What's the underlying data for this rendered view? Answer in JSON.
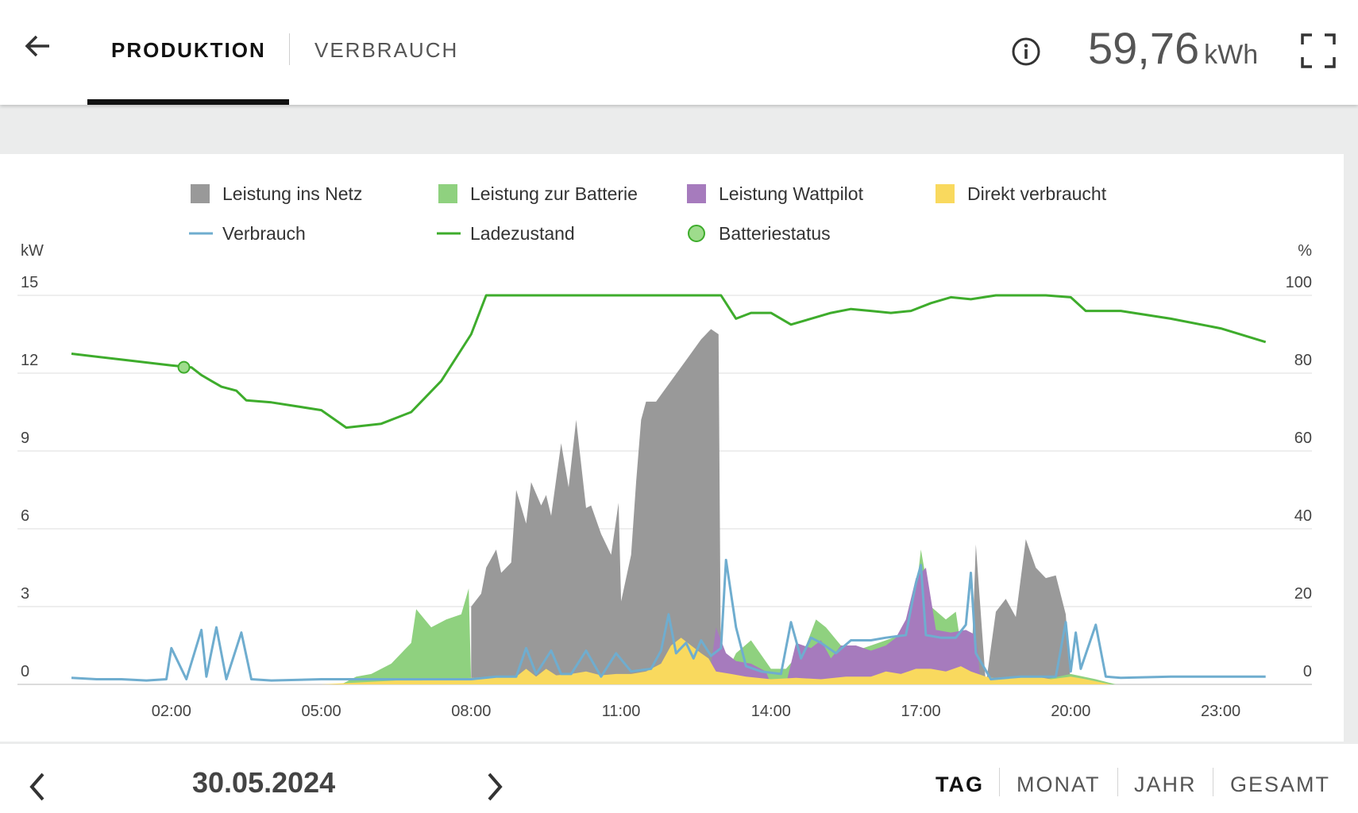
{
  "header": {
    "tabs": [
      {
        "label": "PRODUKTION",
        "active": true
      },
      {
        "label": "VERBRAUCH",
        "active": false
      }
    ],
    "total_value": "59,76",
    "total_unit": "kWh",
    "icons": [
      "arrow-back-icon",
      "info-icon",
      "fullscreen-icon"
    ]
  },
  "footer": {
    "date": "30.05.2024",
    "periods": [
      "TAG",
      "MONAT",
      "JAHR",
      "GESAMT"
    ],
    "active_period": "TAG"
  },
  "colors": {
    "netz": "#999999",
    "batterie": "#8fd17f",
    "wattpilot": "#a67bbd",
    "direkt": "#f9d95e",
    "verbrauch": "#6fadcf",
    "ladezustand": "#3eac2c"
  },
  "chart_data": {
    "type": "area",
    "legend": [
      {
        "label": "Leistung ins Netz",
        "swatch": "square",
        "color": "#999999"
      },
      {
        "label": "Leistung zur Batterie",
        "swatch": "square",
        "color": "#8fd17f"
      },
      {
        "label": "Leistung Wattpilot",
        "swatch": "square",
        "color": "#a67bbd"
      },
      {
        "label": "Direkt verbraucht",
        "swatch": "square",
        "color": "#f9d95e"
      },
      {
        "label": "Verbrauch",
        "swatch": "line",
        "color": "#6fadcf"
      },
      {
        "label": "Ladezustand",
        "swatch": "line",
        "color": "#3eac2c"
      },
      {
        "label": "Batteriestatus",
        "swatch": "dot",
        "color": "#3eac2c"
      }
    ],
    "y_left_label": "kW",
    "y_right_label": "%",
    "y_left_ticks": [
      0,
      3,
      6,
      9,
      12,
      15
    ],
    "y_right_ticks": [
      0,
      20,
      40,
      60,
      80,
      100
    ],
    "y_left_range": [
      0,
      15
    ],
    "y_right_range": [
      0,
      100
    ],
    "x_range_hours": [
      0,
      24
    ],
    "x_ticks": [
      {
        "h": 2,
        "label": "02:00"
      },
      {
        "h": 5,
        "label": "05:00"
      },
      {
        "h": 8,
        "label": "08:00"
      },
      {
        "h": 11,
        "label": "11:00"
      },
      {
        "h": 14,
        "label": "14:00"
      },
      {
        "h": 17,
        "label": "17:00"
      },
      {
        "h": 20,
        "label": "20:00"
      },
      {
        "h": 23,
        "label": "23:00"
      }
    ],
    "grid": "horizontal",
    "legend_position": "top",
    "series": [
      {
        "name": "Direkt verbraucht",
        "values": [
          [
            5.0,
            0
          ],
          [
            5.5,
            0.05
          ],
          [
            6,
            0.1
          ],
          [
            6.5,
            0.15
          ],
          [
            7,
            0.15
          ],
          [
            7.5,
            0.2
          ],
          [
            8,
            0.25
          ],
          [
            8.5,
            0.3
          ],
          [
            8.9,
            0.3
          ],
          [
            9.1,
            0.6
          ],
          [
            9.3,
            0.3
          ],
          [
            9.5,
            0.6
          ],
          [
            9.7,
            0.35
          ],
          [
            10,
            0.4
          ],
          [
            10.3,
            0.5
          ],
          [
            10.6,
            0.35
          ],
          [
            10.9,
            0.4
          ],
          [
            11.2,
            0.4
          ],
          [
            11.5,
            0.5
          ],
          [
            11.8,
            0.8
          ],
          [
            12.0,
            1.5
          ],
          [
            12.2,
            1.8
          ],
          [
            12.4,
            1.5
          ],
          [
            12.6,
            1.2
          ],
          [
            12.75,
            1.0
          ],
          [
            12.9,
            0.5
          ],
          [
            13.2,
            0.4
          ],
          [
            13.5,
            0.3
          ],
          [
            14.0,
            0.2
          ],
          [
            14.5,
            0.25
          ],
          [
            15.0,
            0.2
          ],
          [
            15.5,
            0.3
          ],
          [
            16.0,
            0.3
          ],
          [
            16.3,
            0.5
          ],
          [
            16.6,
            0.4
          ],
          [
            16.9,
            0.6
          ],
          [
            17.2,
            0.6
          ],
          [
            17.5,
            0.5
          ],
          [
            17.8,
            0.7
          ],
          [
            18.0,
            0.5
          ],
          [
            18.3,
            0.3
          ],
          [
            18.6,
            0.2
          ],
          [
            19.0,
            0.3
          ],
          [
            19.3,
            0.3
          ],
          [
            19.6,
            0.2
          ],
          [
            20.0,
            0.3
          ],
          [
            20.3,
            0.2
          ],
          [
            20.8,
            0
          ]
        ]
      },
      {
        "name": "Leistung Wattpilot",
        "values": [
          [
            12.75,
            0
          ],
          [
            12.9,
            2.2
          ],
          [
            13.1,
            1.2
          ],
          [
            13.3,
            0.9
          ],
          [
            13.6,
            0.8
          ],
          [
            13.9,
            0.5
          ],
          [
            14.0,
            0
          ],
          [
            14.3,
            0
          ],
          [
            14.5,
            1.6
          ],
          [
            14.8,
            1.4
          ],
          [
            15.0,
            1.7
          ],
          [
            15.2,
            1.0
          ],
          [
            15.4,
            1.5
          ],
          [
            15.7,
            1.5
          ],
          [
            16.0,
            1.3
          ],
          [
            16.3,
            1.5
          ],
          [
            16.5,
            1.8
          ],
          [
            16.7,
            2.5
          ],
          [
            16.9,
            4.1
          ],
          [
            17.1,
            4.5
          ],
          [
            17.3,
            2.1
          ],
          [
            17.6,
            2.0
          ],
          [
            17.9,
            2.1
          ],
          [
            18.1,
            1.9
          ],
          [
            18.2,
            0
          ]
        ]
      },
      {
        "name": "Leistung zur Batterie",
        "values": [
          [
            5.4,
            0
          ],
          [
            5.7,
            0.3
          ],
          [
            6.0,
            0.4
          ],
          [
            6.4,
            0.8
          ],
          [
            6.8,
            1.6
          ],
          [
            6.9,
            2.9
          ],
          [
            7.2,
            2.2
          ],
          [
            7.5,
            2.5
          ],
          [
            7.8,
            2.7
          ],
          [
            7.95,
            3.7
          ],
          [
            8.0,
            0
          ],
          [
            13.0,
            0
          ],
          [
            13.3,
            1.2
          ],
          [
            13.6,
            1.7
          ],
          [
            14.0,
            0.6
          ],
          [
            14.3,
            0.6
          ],
          [
            14.7,
            1.5
          ],
          [
            14.9,
            2.5
          ],
          [
            15.1,
            2.2
          ],
          [
            15.4,
            1.5
          ],
          [
            15.7,
            1.3
          ],
          [
            16.0,
            1.5
          ],
          [
            16.3,
            1.7
          ],
          [
            16.6,
            1.9
          ],
          [
            16.9,
            3.5
          ],
          [
            17.0,
            5.2
          ],
          [
            17.2,
            3.0
          ],
          [
            17.5,
            2.5
          ],
          [
            17.7,
            2.8
          ],
          [
            17.8,
            1.5
          ],
          [
            18.0,
            0.3
          ],
          [
            19.0,
            0.2
          ],
          [
            19.5,
            0.2
          ],
          [
            20.0,
            0.4
          ],
          [
            20.5,
            0.2
          ],
          [
            20.9,
            0
          ]
        ]
      },
      {
        "name": "Leistung ins Netz",
        "values": [
          [
            8.0,
            3.0
          ],
          [
            8.2,
            3.5
          ],
          [
            8.3,
            4.5
          ],
          [
            8.5,
            5.2
          ],
          [
            8.6,
            4.3
          ],
          [
            8.8,
            4.7
          ],
          [
            8.9,
            7.5
          ],
          [
            9.1,
            6.2
          ],
          [
            9.2,
            7.8
          ],
          [
            9.4,
            6.9
          ],
          [
            9.5,
            7.3
          ],
          [
            9.6,
            6.5
          ],
          [
            9.8,
            9.3
          ],
          [
            9.95,
            7.6
          ],
          [
            10.1,
            10.2
          ],
          [
            10.3,
            6.8
          ],
          [
            10.4,
            6.9
          ],
          [
            10.6,
            5.8
          ],
          [
            10.8,
            5.0
          ],
          [
            10.95,
            7.0
          ],
          [
            11.0,
            3.2
          ],
          [
            11.2,
            5.0
          ],
          [
            11.3,
            7.8
          ],
          [
            11.4,
            10.2
          ],
          [
            11.5,
            10.9
          ],
          [
            11.7,
            10.9
          ],
          [
            12.0,
            11.7
          ],
          [
            12.3,
            12.5
          ],
          [
            12.6,
            13.3
          ],
          [
            12.8,
            13.7
          ],
          [
            12.95,
            13.5
          ],
          [
            13.0,
            0
          ],
          [
            18.0,
            0
          ],
          [
            18.1,
            5.4
          ],
          [
            18.3,
            0
          ],
          [
            18.5,
            2.8
          ],
          [
            18.7,
            3.3
          ],
          [
            18.9,
            2.6
          ],
          [
            19.1,
            5.6
          ],
          [
            19.3,
            4.5
          ],
          [
            19.5,
            4.1
          ],
          [
            19.7,
            4.2
          ],
          [
            19.9,
            2.7
          ],
          [
            20.0,
            0
          ]
        ]
      },
      {
        "name": "Verbrauch",
        "values": [
          [
            0,
            0.25
          ],
          [
            0.5,
            0.2
          ],
          [
            1.0,
            0.2
          ],
          [
            1.5,
            0.15
          ],
          [
            1.9,
            0.2
          ],
          [
            2.0,
            1.4
          ],
          [
            2.3,
            0.2
          ],
          [
            2.6,
            2.1
          ],
          [
            2.7,
            0.3
          ],
          [
            2.9,
            2.2
          ],
          [
            3.1,
            0.2
          ],
          [
            3.4,
            2.0
          ],
          [
            3.6,
            0.2
          ],
          [
            4.0,
            0.15
          ],
          [
            5.0,
            0.2
          ],
          [
            6.0,
            0.2
          ],
          [
            7.0,
            0.2
          ],
          [
            8.0,
            0.2
          ],
          [
            8.5,
            0.3
          ],
          [
            8.9,
            0.3
          ],
          [
            9.1,
            1.4
          ],
          [
            9.3,
            0.4
          ],
          [
            9.6,
            1.3
          ],
          [
            9.8,
            0.4
          ],
          [
            10.0,
            0.4
          ],
          [
            10.3,
            1.3
          ],
          [
            10.6,
            0.3
          ],
          [
            10.9,
            1.2
          ],
          [
            11.2,
            0.5
          ],
          [
            11.6,
            0.6
          ],
          [
            11.8,
            1.3
          ],
          [
            11.95,
            2.7
          ],
          [
            12.1,
            1.2
          ],
          [
            12.3,
            1.6
          ],
          [
            12.45,
            1.0
          ],
          [
            12.6,
            1.7
          ],
          [
            12.8,
            1.1
          ],
          [
            13.0,
            1.4
          ],
          [
            13.1,
            4.8
          ],
          [
            13.3,
            2.2
          ],
          [
            13.5,
            0.7
          ],
          [
            13.8,
            0.5
          ],
          [
            14.2,
            0.4
          ],
          [
            14.4,
            2.4
          ],
          [
            14.6,
            1.0
          ],
          [
            14.8,
            1.8
          ],
          [
            15.0,
            1.6
          ],
          [
            15.3,
            1.2
          ],
          [
            15.6,
            1.7
          ],
          [
            16.0,
            1.7
          ],
          [
            16.3,
            1.8
          ],
          [
            16.7,
            1.9
          ],
          [
            16.9,
            3.9
          ],
          [
            17.0,
            4.6
          ],
          [
            17.1,
            1.9
          ],
          [
            17.4,
            1.8
          ],
          [
            17.7,
            1.8
          ],
          [
            17.9,
            2.3
          ],
          [
            18.0,
            4.3
          ],
          [
            18.1,
            1.2
          ],
          [
            18.4,
            0.2
          ],
          [
            19.0,
            0.3
          ],
          [
            19.4,
            0.3
          ],
          [
            19.7,
            0.3
          ],
          [
            19.9,
            2.4
          ],
          [
            20.0,
            0.5
          ],
          [
            20.1,
            2.0
          ],
          [
            20.2,
            0.6
          ],
          [
            20.5,
            2.3
          ],
          [
            20.7,
            0.3
          ],
          [
            21.0,
            0.25
          ],
          [
            22.0,
            0.3
          ],
          [
            23.0,
            0.3
          ],
          [
            23.9,
            0.3
          ]
        ]
      },
      {
        "name": "Ladezustand",
        "values": [
          [
            0,
            85
          ],
          [
            1.0,
            83.5
          ],
          [
            2.0,
            82
          ],
          [
            2.4,
            81.5
          ],
          [
            2.6,
            79.5
          ],
          [
            2.8,
            78
          ],
          [
            3.0,
            76.5
          ],
          [
            3.3,
            75.5
          ],
          [
            3.5,
            73
          ],
          [
            4.0,
            72.5
          ],
          [
            5.0,
            70.5
          ],
          [
            5.5,
            66
          ],
          [
            6.2,
            67
          ],
          [
            6.8,
            70
          ],
          [
            7.4,
            78
          ],
          [
            8.0,
            90
          ],
          [
            8.3,
            100
          ],
          [
            13.0,
            100
          ],
          [
            13.3,
            94
          ],
          [
            13.6,
            95.5
          ],
          [
            14.0,
            95.5
          ],
          [
            14.4,
            92.5
          ],
          [
            14.8,
            94
          ],
          [
            15.2,
            95.5
          ],
          [
            15.6,
            96.5
          ],
          [
            16.0,
            96
          ],
          [
            16.4,
            95.5
          ],
          [
            16.8,
            96
          ],
          [
            17.2,
            98
          ],
          [
            17.6,
            99.5
          ],
          [
            18.0,
            99
          ],
          [
            18.5,
            100
          ],
          [
            19.5,
            100
          ],
          [
            20.0,
            99.5
          ],
          [
            20.3,
            96
          ],
          [
            21.0,
            96
          ],
          [
            22.0,
            94
          ],
          [
            23.0,
            91.5
          ],
          [
            23.9,
            88
          ]
        ]
      }
    ],
    "battery_status_marker": {
      "h": 2.25,
      "percent": 81.5
    }
  }
}
